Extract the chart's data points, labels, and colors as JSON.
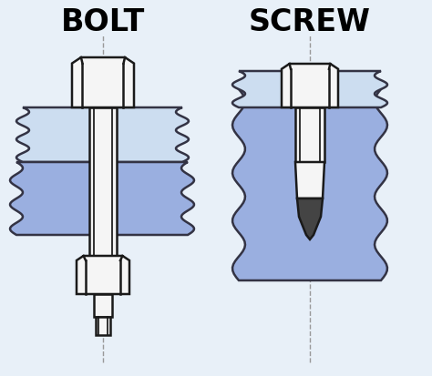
{
  "bg_color": "#e8f0f8",
  "title_bolt": "BOLT",
  "title_screw": "SCREW",
  "title_fontsize": 24,
  "title_fontweight": "bold",
  "shaft_color": "#f5f5f5",
  "shaft_edge": "#1a1a1a",
  "material_top_color": "#ccddf0",
  "material_bot_color": "#9aafe0",
  "material_edge": "#333344",
  "dashed_color": "#999999",
  "tip_color": "#444444",
  "lw": 1.8
}
